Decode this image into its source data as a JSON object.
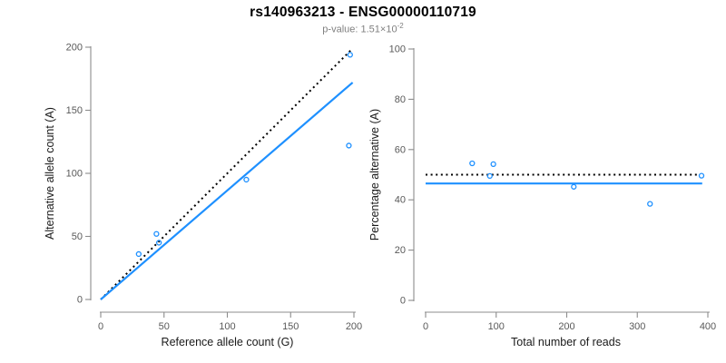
{
  "title": "rs140963213 - ENSG00000110719",
  "subtitle": {
    "prefix": "p-value: 1.51×10",
    "exponent": "-2"
  },
  "colors": {
    "accent_blue": "#1E90FF",
    "dotted_black": "#000000",
    "axis_gray": "#8c8c8c",
    "tick_text_gray": "#595959",
    "subtitle_gray": "#7f7f7f"
  },
  "chart_data": [
    {
      "type": "scatter",
      "panel": "allele-counts",
      "xlabel": "Reference allele count (G)",
      "ylabel": "Alternative allele count (A)",
      "xlim": [
        0,
        200
      ],
      "ylim": [
        0,
        200
      ],
      "xticks": [
        0,
        50,
        100,
        150,
        200
      ],
      "yticks": [
        0,
        50,
        100,
        150,
        200
      ],
      "grid": false,
      "legend": null,
      "points": [
        {
          "x": 30,
          "y": 36
        },
        {
          "x": 44,
          "y": 52
        },
        {
          "x": 46,
          "y": 45
        },
        {
          "x": 115,
          "y": 95
        },
        {
          "x": 196,
          "y": 122
        },
        {
          "x": 197,
          "y": 194
        }
      ],
      "lines": [
        {
          "name": "identity-line",
          "style": "dotted",
          "color": "#000000",
          "x": [
            0,
            197.5
          ],
          "y": [
            0,
            197.5
          ]
        },
        {
          "name": "regression-line",
          "style": "solid",
          "color": "#1E90FF",
          "x": [
            0,
            199
          ],
          "y": [
            0,
            172
          ]
        }
      ]
    },
    {
      "type": "scatter",
      "panel": "percentage-alternative",
      "xlabel": "Total number of reads",
      "ylabel": "Percentage alternative (A)",
      "xlim": [
        0,
        400
      ],
      "ylim": [
        0,
        100
      ],
      "xticks": [
        0,
        100,
        200,
        300,
        400
      ],
      "yticks": [
        0,
        20,
        40,
        60,
        80,
        100
      ],
      "grid": false,
      "legend": null,
      "points": [
        {
          "x": 66,
          "y": 54.5
        },
        {
          "x": 96,
          "y": 54.2
        },
        {
          "x": 91,
          "y": 49.5
        },
        {
          "x": 210,
          "y": 45.2
        },
        {
          "x": 318,
          "y": 38.4
        },
        {
          "x": 391,
          "y": 49.6
        }
      ],
      "lines": [
        {
          "name": "expected-50-percent-line",
          "style": "dotted",
          "color": "#000000",
          "x": [
            0,
            385
          ],
          "y": [
            50,
            50
          ]
        },
        {
          "name": "mean-percentage-line",
          "style": "solid",
          "color": "#1E90FF",
          "x": [
            0,
            392
          ],
          "y": [
            46.5,
            46.5
          ]
        }
      ]
    }
  ]
}
